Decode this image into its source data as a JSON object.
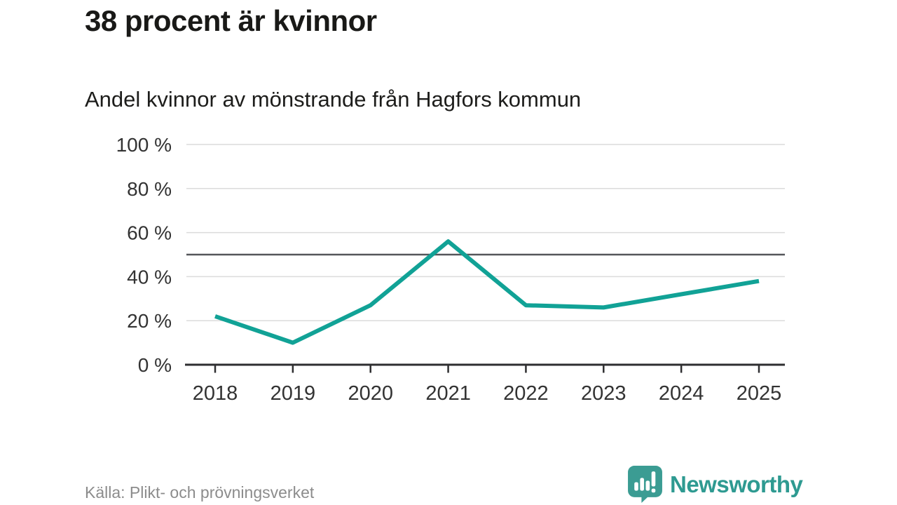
{
  "header": {
    "title": "38 procent är kvinnor",
    "subtitle": "Andel kvinnor av mönstrande från Hagfors kommun"
  },
  "chart_data": {
    "type": "line",
    "title": "38 procent är kvinnor",
    "subtitle": "Andel kvinnor av mönstrande från Hagfors kommun",
    "categories": [
      "2018",
      "2019",
      "2020",
      "2021",
      "2022",
      "2023",
      "2024",
      "2025"
    ],
    "series": [
      {
        "name": "Andel kvinnor av mönstrande (%)",
        "values": [
          22,
          10,
          27,
          56,
          27,
          26,
          32,
          38
        ]
      }
    ],
    "xlabel": "",
    "ylabel": "",
    "ylim": [
      0,
      100
    ],
    "yticks": [
      0,
      20,
      40,
      60,
      80,
      100
    ],
    "ytick_labels": [
      "0 %",
      "20 %",
      "40 %",
      "60 %",
      "80 %",
      "100 %"
    ],
    "reference_line": 50,
    "grid": true,
    "legend": "none"
  },
  "footer": {
    "source": "Källa: Plikt- och prövningsverket",
    "brand": "Newsworthy"
  },
  "colors": {
    "line": "#11a296",
    "grid": "#dbdbdb",
    "reference": "#55565a",
    "axis": "#2e2e30",
    "tick_label": "#333333",
    "title": "#191917",
    "subtitle": "#1d1d1b",
    "source": "#8c8c8c",
    "logo_icon": "#3b9c93",
    "logo_text": "#2e9a91"
  }
}
